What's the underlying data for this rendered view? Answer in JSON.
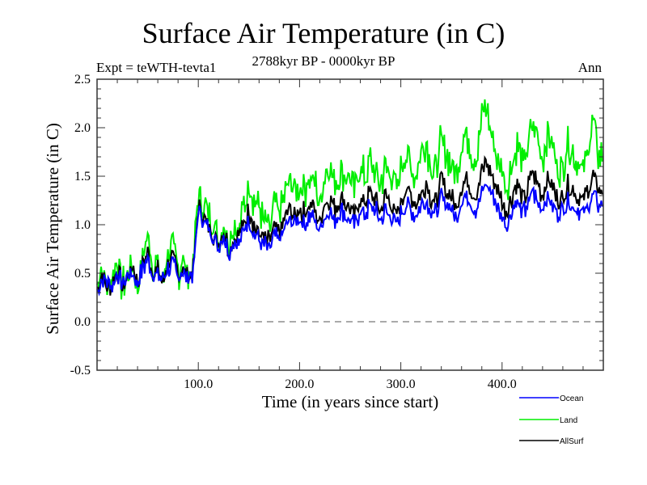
{
  "chart_data": {
    "type": "line",
    "title": "Surface Air Temperature (in C)",
    "subtitle": "2788kyr BP - 0000kyr BP",
    "left_annotation": "Expt = teWTH-tevta1",
    "right_annotation": "Ann",
    "xlabel": "Time (in years since start)",
    "ylabel": "Surface Air Temperature (in C)",
    "xlim": [
      0,
      500
    ],
    "ylim": [
      -0.5,
      2.5
    ],
    "xticks": [
      100,
      200,
      300,
      400
    ],
    "xtick_labels": [
      "100.0",
      "200.0",
      "300.0",
      "400.0"
    ],
    "x_minor_step": 20,
    "yticks": [
      -0.5,
      0.0,
      0.5,
      1.0,
      1.5,
      2.0,
      2.5
    ],
    "ytick_labels": [
      "-0.5",
      "0.0",
      "0.5",
      "1.0",
      "1.5",
      "2.0",
      "2.5"
    ],
    "y_minor_step": 0.1,
    "reference_line": {
      "y": 0.0,
      "style": "dashed"
    },
    "grid": false,
    "legend_position": "bottom-right",
    "x_step": 5,
    "x_start": 0,
    "series": [
      {
        "name": "Ocean",
        "color": "#0000ff",
        "values": [
          0.3,
          0.45,
          0.4,
          0.35,
          0.5,
          0.38,
          0.45,
          0.52,
          0.4,
          0.55,
          0.62,
          0.48,
          0.5,
          0.42,
          0.55,
          0.6,
          0.47,
          0.52,
          0.45,
          0.5,
          1.15,
          1.05,
          0.95,
          0.85,
          0.78,
          0.92,
          0.7,
          0.85,
          0.8,
          0.95,
          1.05,
          0.9,
          0.85,
          0.8,
          0.75,
          0.9,
          0.85,
          0.95,
          1.05,
          1.0,
          1.05,
          1.0,
          1.1,
          1.05,
          0.95,
          1.1,
          1.15,
          1.05,
          1.15,
          1.1,
          1.05,
          1.0,
          1.15,
          1.1,
          1.2,
          1.15,
          1.05,
          1.15,
          1.1,
          1.0,
          1.1,
          1.2,
          1.15,
          1.1,
          1.2,
          1.25,
          1.15,
          1.1,
          1.3,
          1.2,
          1.15,
          1.05,
          1.25,
          1.3,
          1.2,
          1.15,
          1.35,
          1.4,
          1.3,
          1.2,
          1.1,
          1.0,
          1.15,
          1.25,
          1.1,
          1.2,
          1.35,
          1.25,
          1.15,
          1.3,
          1.2,
          1.1,
          1.15,
          1.25,
          1.2,
          1.15,
          1.1,
          1.2,
          1.3,
          1.2
        ]
      },
      {
        "name": "Land",
        "color": "#00ee00",
        "values": [
          0.4,
          0.55,
          0.3,
          0.45,
          0.6,
          0.35,
          0.5,
          0.65,
          0.35,
          0.7,
          0.9,
          0.55,
          0.6,
          0.4,
          0.7,
          0.75,
          0.5,
          0.65,
          0.45,
          0.6,
          1.3,
          1.2,
          1.15,
          1.0,
          0.85,
          1.05,
          0.8,
          1.0,
          0.95,
          1.2,
          1.4,
          1.25,
          1.15,
          1.05,
          0.95,
          1.2,
          1.1,
          1.3,
          1.45,
          1.35,
          1.4,
          1.35,
          1.5,
          1.45,
          1.2,
          1.55,
          1.6,
          1.45,
          1.55,
          1.5,
          1.45,
          1.35,
          1.6,
          1.5,
          1.65,
          1.55,
          1.4,
          1.6,
          1.55,
          1.35,
          1.55,
          1.75,
          1.6,
          1.5,
          1.7,
          1.85,
          1.6,
          1.55,
          1.9,
          1.75,
          1.6,
          1.5,
          1.8,
          1.95,
          1.75,
          1.65,
          2.1,
          2.2,
          1.9,
          1.7,
          1.55,
          1.4,
          1.65,
          1.85,
          1.6,
          1.75,
          2.05,
          1.9,
          1.65,
          1.95,
          1.8,
          1.55,
          1.6,
          1.85,
          1.75,
          1.65,
          1.6,
          1.8,
          2.05,
          1.7
        ]
      },
      {
        "name": "AllSurf",
        "color": "#000000",
        "values": [
          0.32,
          0.48,
          0.38,
          0.38,
          0.53,
          0.37,
          0.46,
          0.56,
          0.39,
          0.59,
          0.7,
          0.5,
          0.53,
          0.42,
          0.59,
          0.64,
          0.48,
          0.56,
          0.45,
          0.53,
          1.19,
          1.09,
          1.01,
          0.9,
          0.8,
          0.96,
          0.73,
          0.89,
          0.85,
          1.02,
          1.15,
          0.99,
          0.93,
          0.87,
          0.81,
          0.98,
          0.92,
          1.04,
          1.16,
          1.1,
          1.15,
          1.11,
          1.22,
          1.16,
          1.03,
          1.23,
          1.28,
          1.17,
          1.27,
          1.22,
          1.17,
          1.1,
          1.28,
          1.21,
          1.33,
          1.27,
          1.15,
          1.28,
          1.23,
          1.09,
          1.23,
          1.36,
          1.29,
          1.22,
          1.34,
          1.42,
          1.28,
          1.23,
          1.47,
          1.35,
          1.28,
          1.18,
          1.41,
          1.49,
          1.36,
          1.29,
          1.58,
          1.65,
          1.49,
          1.36,
          1.24,
          1.12,
          1.29,
          1.42,
          1.25,
          1.36,
          1.55,
          1.43,
          1.3,
          1.49,
          1.38,
          1.24,
          1.29,
          1.42,
          1.36,
          1.29,
          1.24,
          1.36,
          1.52,
          1.35
        ]
      }
    ]
  }
}
